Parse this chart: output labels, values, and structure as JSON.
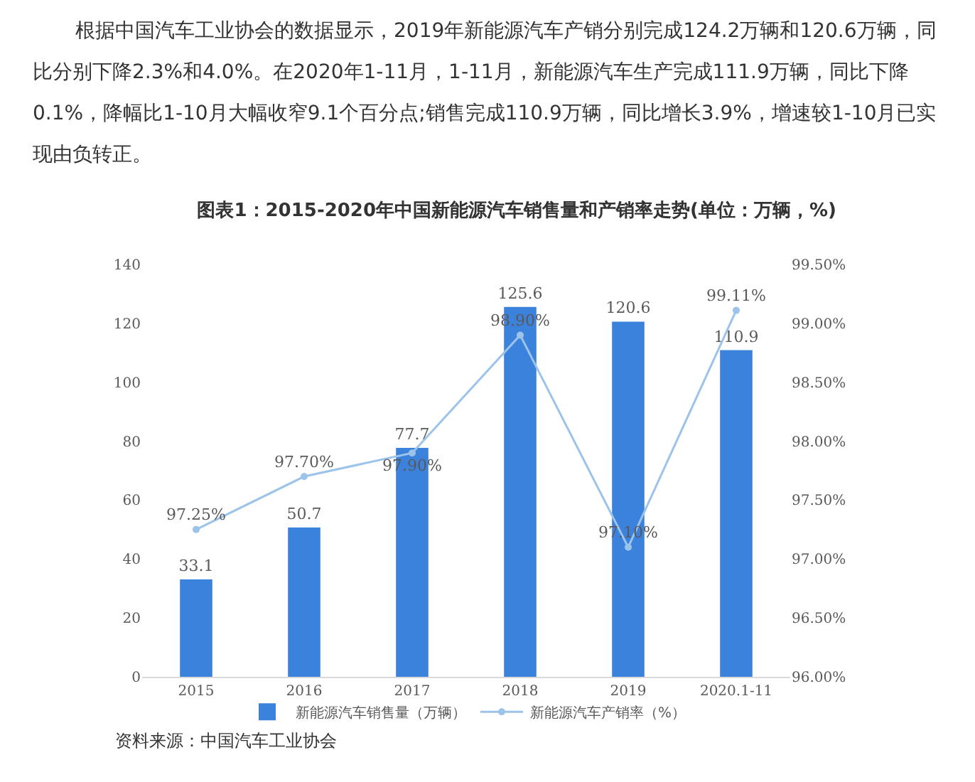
{
  "chart_data": {
    "type": "bar",
    "title": "图表1：2015-2020年中国新能源汽车销售量和产销率走势(单位：万辆，%)",
    "categories": [
      "2015",
      "2016",
      "2017",
      "2018",
      "2019",
      "2020.1-11"
    ],
    "series": [
      {
        "name": "新能源汽车销售量（万辆）",
        "color": "#3b82dc",
        "values": [
          33.1,
          50.7,
          77.7,
          125.6,
          120.6,
          110.9
        ],
        "value_labels": [
          "33.1",
          "50.7",
          "77.7",
          "125.6",
          "120.6",
          "110.9"
        ]
      },
      {
        "name": "新能源汽车产销率（%）",
        "type": "line",
        "axis": "y2",
        "color": "#9cc3ea",
        "values": [
          97.25,
          97.7,
          97.9,
          98.9,
          97.1,
          99.11
        ],
        "value_labels": [
          "97.25%",
          "97.70%",
          "97.90%",
          "98.90%",
          "97.10%",
          "99.11%"
        ]
      }
    ],
    "ylim": [
      0,
      140
    ],
    "yticks": [
      0,
      20,
      40,
      60,
      80,
      100,
      120,
      140
    ],
    "y2lim": [
      96,
      99.5
    ],
    "y2ticks": [
      {
        "value": 96,
        "label": "96.00%"
      },
      {
        "value": 96.5,
        "label": "96.50%"
      },
      {
        "value": 97,
        "label": "97.00%"
      },
      {
        "value": 97.5,
        "label": "97.50%"
      },
      {
        "value": 98,
        "label": "98.00%"
      },
      {
        "value": 98.5,
        "label": "98.50%"
      },
      {
        "value": 99,
        "label": "99.00%"
      },
      {
        "value": 99.5,
        "label": "99.50%"
      }
    ],
    "grid": false,
    "legend": "bottom",
    "marker": "circle",
    "line_style": "solid",
    "annotations": [
      "根据中国汽车工业协会的数据显示，2019年新能源汽车产销分别完成124.2万辆和120.6万辆，同比分别下降2.3%和4.0%。在2020年1-11月，1-11月，新能源汽车生产完成111.9万辆，同比下降0.1%，降幅比1-10月大幅收窄9.1个百分点;销售完成110.9万辆，同比增长3.9%，增速较1-10月已实现由负转正。",
      "资料来源：中国汽车工业协会"
    ]
  }
}
